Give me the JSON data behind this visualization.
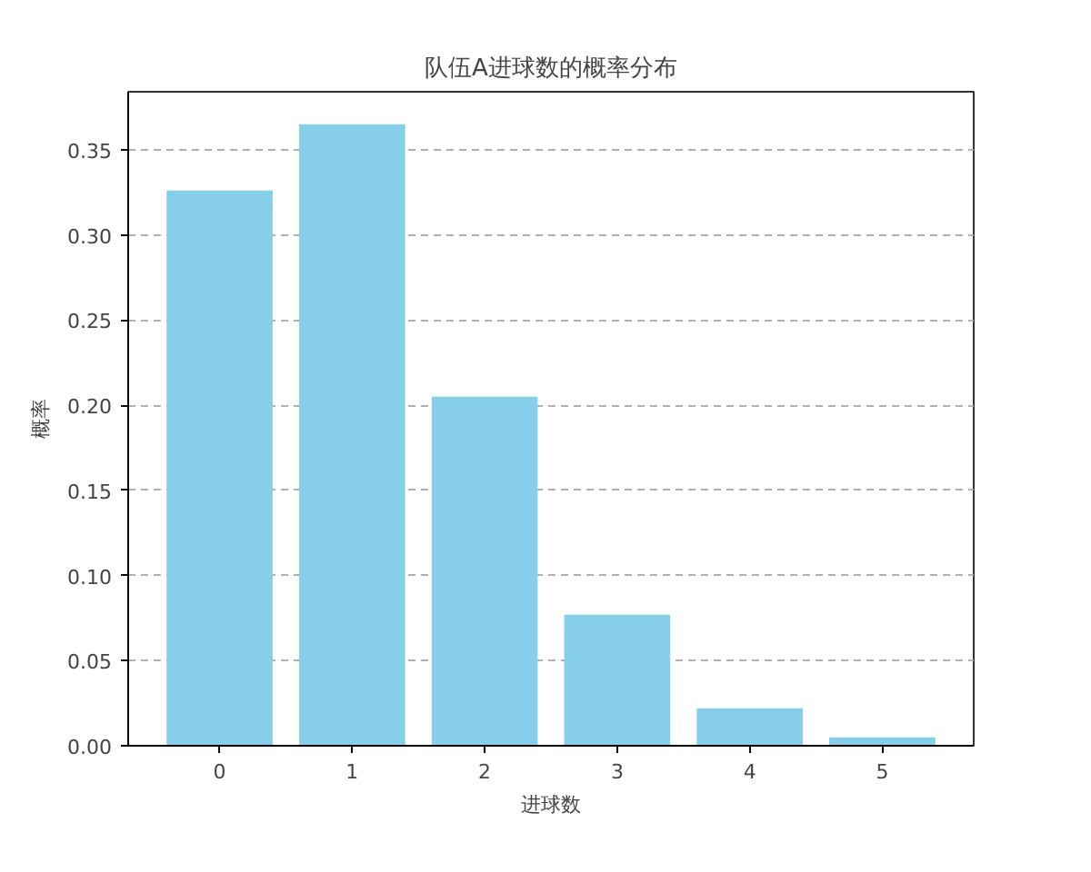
{
  "chart_data": {
    "type": "bar",
    "title": "队伍A进球数的概率分布",
    "xlabel": "进球数",
    "ylabel": "概率",
    "categories": [
      "0",
      "1",
      "2",
      "3",
      "4",
      "5"
    ],
    "values": [
      0.326,
      0.365,
      0.205,
      0.077,
      0.022,
      0.005
    ],
    "color": "#87ceeb",
    "ylim": [
      0,
      0.384
    ],
    "yticks": [
      {
        "value": 0,
        "label": "0.00"
      },
      {
        "value": 0.05,
        "label": "0.05"
      },
      {
        "value": 0.1,
        "label": "0.10"
      },
      {
        "value": 0.15,
        "label": "0.15"
      },
      {
        "value": 0.2,
        "label": "0.20"
      },
      {
        "value": 0.25,
        "label": "0.25"
      },
      {
        "value": 0.3,
        "label": "0.30"
      },
      {
        "value": 0.35,
        "label": "0.35"
      }
    ],
    "grid": "y",
    "line_style": "dashed"
  }
}
